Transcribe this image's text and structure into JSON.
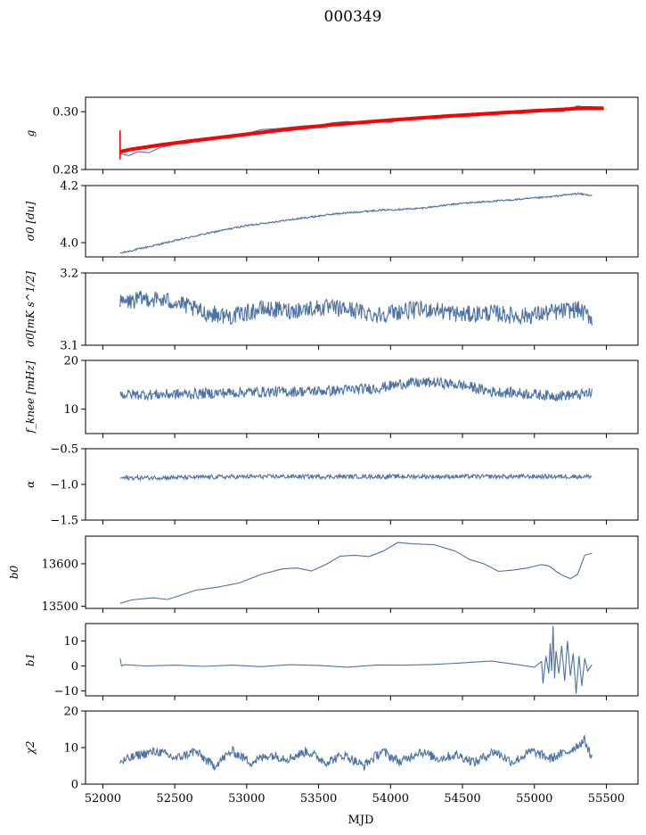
{
  "figure": {
    "title": "000349",
    "xlabel": "MJD",
    "x_ticks": [
      52000,
      52500,
      53000,
      53500,
      54000,
      54500,
      55000,
      55500
    ],
    "line_color": "#4c72a4",
    "model_color": "#ff0000"
  },
  "chart_data": [
    {
      "type": "line",
      "ylabel": "g",
      "ylim": [
        0.28,
        0.305
      ],
      "y_ticks": [
        {
          "value": 0.28,
          "label": "0.28"
        },
        {
          "value": 0.3,
          "label": "0.30"
        }
      ],
      "xlim": [
        51880,
        55720
      ],
      "series": [
        {
          "style": "line",
          "x": [
            52120,
            52180,
            52250,
            52320,
            52400,
            52500,
            52600,
            52700,
            52800,
            52900,
            53000,
            53100,
            53200,
            53300,
            53400,
            53500,
            53600,
            53700,
            53800,
            53900,
            54000,
            54100,
            54200,
            54300,
            54400,
            54500,
            54600,
            54700,
            54800,
            54900,
            55000,
            55100,
            55200,
            55300,
            55400
          ],
          "y": [
            0.2855,
            0.2848,
            0.2862,
            0.2858,
            0.2876,
            0.2888,
            0.2892,
            0.2905,
            0.2912,
            0.2919,
            0.2924,
            0.2938,
            0.2941,
            0.2946,
            0.2951,
            0.2953,
            0.2962,
            0.2966,
            0.296,
            0.297,
            0.2963,
            0.2978,
            0.298,
            0.2986,
            0.298,
            0.2991,
            0.2985,
            0.2994,
            0.2996,
            0.2993,
            0.3004,
            0.3003,
            0.3001,
            0.302,
            0.3012
          ]
        },
        {
          "style": "band",
          "x": [
            52120,
            52200,
            52400,
            52600,
            52800,
            53000,
            53200,
            53400,
            53600,
            53800,
            54000,
            54200,
            54400,
            54600,
            54800,
            55000,
            55200,
            55350,
            55480
          ],
          "y": [
            0.2862,
            0.287,
            0.2885,
            0.2898,
            0.291,
            0.2922,
            0.2934,
            0.2945,
            0.2955,
            0.2963,
            0.2971,
            0.2978,
            0.2985,
            0.2991,
            0.2997,
            0.3003,
            0.3008,
            0.3013,
            0.3012
          ]
        }
      ]
    },
    {
      "type": "line",
      "ylabel": "σ0 [du]",
      "ylim": [
        3.95,
        4.2
      ],
      "y_ticks": [
        {
          "value": 4.0,
          "label": "4.0"
        },
        {
          "value": 4.2,
          "label": "4.2"
        }
      ],
      "xlim": [
        51880,
        55720
      ],
      "series": [
        {
          "style": "noisy",
          "noise": 0.003,
          "x": [
            52120,
            52400,
            52700,
            53000,
            53300,
            53600,
            53900,
            54200,
            54500,
            54800,
            55100,
            55300,
            55400
          ],
          "y": [
            3.963,
            3.995,
            4.03,
            4.06,
            4.08,
            4.1,
            4.113,
            4.12,
            4.138,
            4.148,
            4.16,
            4.172,
            4.165
          ]
        }
      ]
    },
    {
      "type": "line",
      "ylabel": "σ0[mK s^1/2]",
      "ylim": [
        3.1,
        3.2
      ],
      "y_ticks": [
        {
          "value": 3.1,
          "label": "3.1"
        },
        {
          "value": 3.2,
          "label": "3.2"
        }
      ],
      "xlim": [
        51880,
        55720
      ],
      "series": [
        {
          "style": "noisy",
          "noise": 0.012,
          "x": [
            52120,
            52300,
            52500,
            52700,
            52900,
            53100,
            53300,
            53500,
            53700,
            53900,
            54100,
            54300,
            54500,
            54700,
            54900,
            55100,
            55300,
            55400
          ],
          "y": [
            3.158,
            3.165,
            3.16,
            3.145,
            3.14,
            3.15,
            3.148,
            3.152,
            3.15,
            3.142,
            3.148,
            3.15,
            3.142,
            3.145,
            3.14,
            3.145,
            3.15,
            3.138
          ]
        }
      ]
    },
    {
      "type": "line",
      "ylabel": "f_knee [mHz]",
      "ylim": [
        5,
        20
      ],
      "y_ticks": [
        {
          "value": 10,
          "label": "10"
        },
        {
          "value": 20,
          "label": "20"
        }
      ],
      "xlim": [
        51880,
        55720
      ],
      "series": [
        {
          "style": "noisy",
          "noise": 1.1,
          "x": [
            52120,
            52400,
            52700,
            53000,
            53300,
            53600,
            53900,
            54100,
            54300,
            54500,
            54700,
            54900,
            55100,
            55300,
            55400
          ],
          "y": [
            13.0,
            13.0,
            13.2,
            13.5,
            13.6,
            13.8,
            14.3,
            15.3,
            15.5,
            14.9,
            13.6,
            13.3,
            12.8,
            12.9,
            13.3
          ]
        }
      ]
    },
    {
      "type": "line",
      "ylabel": "α",
      "ylim": [
        -1.5,
        -0.5
      ],
      "y_ticks": [
        {
          "value": -1.5,
          "label": "−1.5"
        },
        {
          "value": -1.0,
          "label": "−1.0"
        },
        {
          "value": -0.5,
          "label": "−0.5"
        }
      ],
      "xlim": [
        51880,
        55720
      ],
      "series": [
        {
          "style": "noisy",
          "noise": 0.03,
          "x": [
            52120,
            52600,
            53100,
            53600,
            54100,
            54600,
            55100,
            55400
          ],
          "y": [
            -0.91,
            -0.9,
            -0.89,
            -0.89,
            -0.89,
            -0.89,
            -0.89,
            -0.89
          ]
        }
      ]
    },
    {
      "type": "line",
      "ylabel": "b0",
      "ylim": [
        13495,
        13665
      ],
      "y_ticks": [
        {
          "value": 13500,
          "label": "13500"
        },
        {
          "value": 13600,
          "label": "13600"
        }
      ],
      "xlim": [
        51880,
        55720
      ],
      "series": [
        {
          "style": "line",
          "x": [
            52120,
            52200,
            52350,
            52450,
            52650,
            52800,
            52950,
            53100,
            53250,
            53350,
            53450,
            53550,
            53650,
            53750,
            53850,
            53950,
            54050,
            54150,
            54300,
            54450,
            54550,
            54650,
            54750,
            54850,
            54950,
            55050,
            55100,
            55130,
            55150,
            55200,
            55250,
            55300,
            55350,
            55400
          ],
          "y": [
            13507,
            13515,
            13520,
            13516,
            13538,
            13545,
            13555,
            13575,
            13588,
            13590,
            13583,
            13598,
            13618,
            13620,
            13617,
            13630,
            13650,
            13647,
            13645,
            13630,
            13610,
            13600,
            13582,
            13585,
            13590,
            13598,
            13595,
            13588,
            13582,
            13572,
            13565,
            13575,
            13620,
            13625
          ]
        }
      ]
    },
    {
      "type": "line",
      "ylabel": "b1",
      "ylim": [
        -12,
        17
      ],
      "y_ticks": [
        {
          "value": -10,
          "label": "−10"
        },
        {
          "value": 0,
          "label": "0"
        },
        {
          "value": 10,
          "label": "10"
        }
      ],
      "xlim": [
        51880,
        55720
      ],
      "series": [
        {
          "style": "line",
          "x": [
            52120,
            52130,
            52150,
            52300,
            52500,
            52700,
            52900,
            53100,
            53300,
            53500,
            53700,
            53900,
            54100,
            54300,
            54500,
            54700,
            54900,
            55000,
            55050,
            55060,
            55080,
            55100,
            55110,
            55120,
            55130,
            55140,
            55150,
            55170,
            55190,
            55210,
            55230,
            55250,
            55270,
            55290,
            55310,
            55330,
            55350,
            55370,
            55400
          ],
          "y": [
            3,
            0,
            0.5,
            0,
            0.3,
            -0.2,
            0.3,
            -0.3,
            0.5,
            0.2,
            -0.5,
            0.4,
            0.3,
            0.6,
            1.2,
            2.0,
            0.4,
            -0.5,
            1.8,
            -7,
            4,
            -3,
            9,
            -2,
            16,
            -5,
            6,
            -3,
            8,
            -6,
            10,
            -4,
            5,
            -11,
            4,
            -8,
            3,
            -2,
            0.5
          ]
        }
      ]
    },
    {
      "type": "line",
      "ylabel": "χ2",
      "ylim": [
        0,
        20
      ],
      "y_ticks": [
        {
          "value": 0,
          "label": "0"
        },
        {
          "value": 10,
          "label": "10"
        },
        {
          "value": 20,
          "label": "20"
        }
      ],
      "xlim": [
        51880,
        55720
      ],
      "series": [
        {
          "style": "noisy",
          "noise": 1.3,
          "x": [
            52120,
            52250,
            52380,
            52510,
            52640,
            52770,
            52900,
            53030,
            53160,
            53290,
            53420,
            53550,
            53680,
            53810,
            53940,
            54070,
            54200,
            54330,
            54460,
            54590,
            54720,
            54850,
            54980,
            55110,
            55240,
            55350,
            55400
          ],
          "y": [
            6,
            8,
            9,
            7,
            9,
            5,
            9,
            6,
            8,
            7,
            9,
            6,
            8,
            5,
            9,
            6,
            9,
            7,
            8,
            6,
            9,
            6,
            9,
            7,
            9,
            12,
            7
          ]
        }
      ]
    }
  ]
}
